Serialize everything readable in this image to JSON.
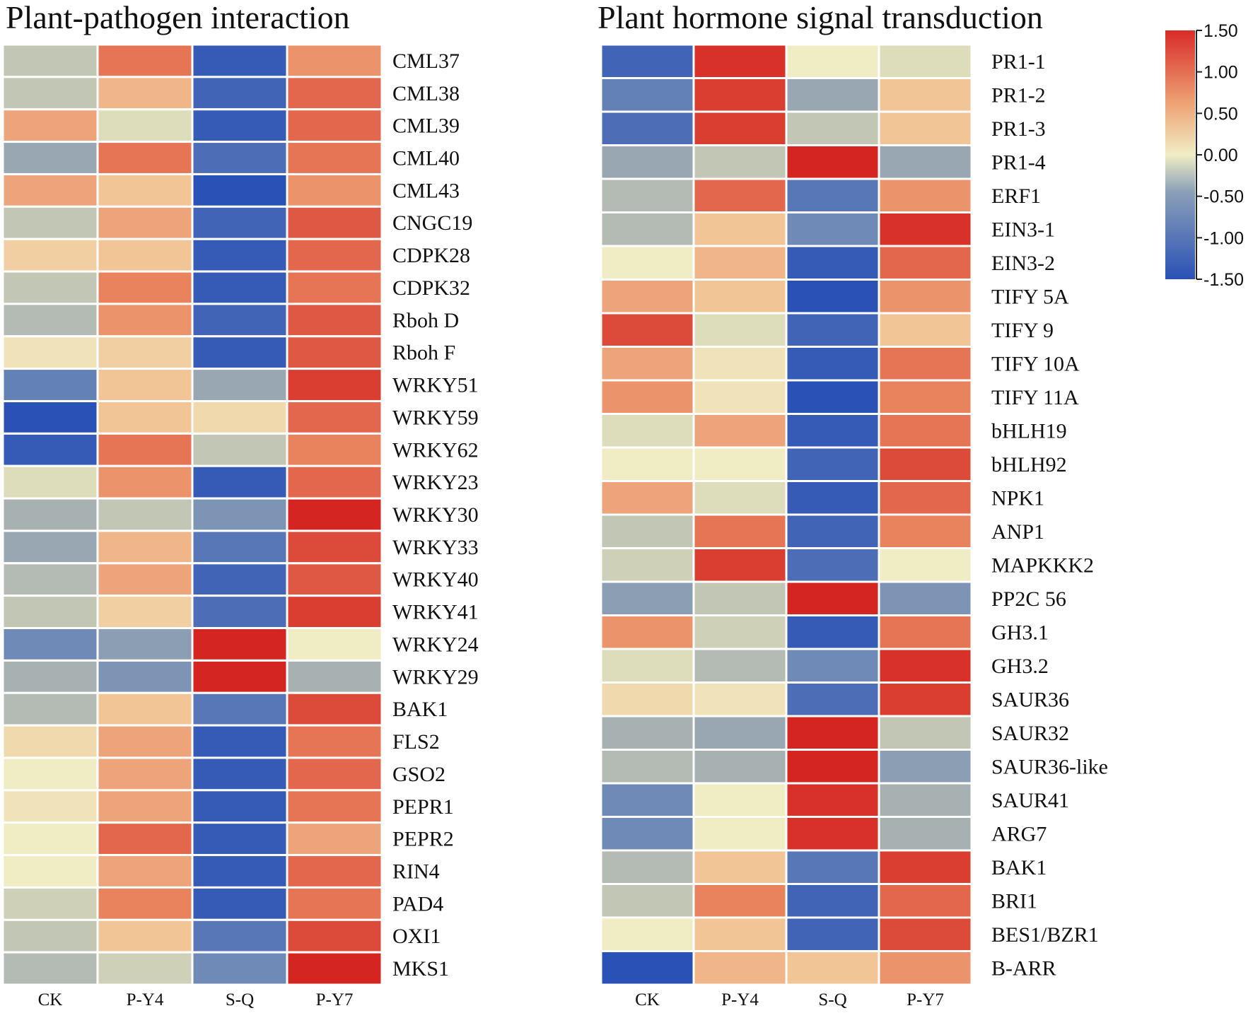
{
  "chart_data": [
    {
      "type": "heatmap",
      "title": "Plant-pathogen interaction",
      "columns": [
        "CK",
        "P-Y4",
        "S-Q",
        "P-Y7"
      ],
      "rows": [
        "CML37",
        "CML38",
        "CML39",
        "CML40",
        "CML43",
        "CNGC19",
        "CDPK28",
        "CDPK32",
        "Rboh D",
        "Rboh F",
        "WRKY51",
        "WRKY59",
        "WRKY62",
        "WRKY23",
        "WRKY30",
        "WRKY33",
        "WRKY40",
        "WRKY41",
        "WRKY24",
        "WRKY29",
        "BAK1",
        "FLS2",
        "GSO2",
        "PEPR1",
        "PEPR2",
        "RIN4",
        "PAD4",
        "OXI1",
        "MKS1"
      ],
      "values": [
        [
          -0.3,
          0.9,
          -1.4,
          0.7
        ],
        [
          -0.3,
          0.5,
          -1.3,
          1.0
        ],
        [
          0.6,
          -0.1,
          -1.4,
          1.0
        ],
        [
          -0.6,
          0.9,
          -1.2,
          0.9
        ],
        [
          0.6,
          0.4,
          -1.5,
          0.7
        ],
        [
          -0.3,
          0.6,
          -1.3,
          1.1
        ],
        [
          0.3,
          0.4,
          -1.4,
          1.0
        ],
        [
          -0.3,
          0.8,
          -1.4,
          0.9
        ],
        [
          -0.4,
          0.7,
          -1.3,
          1.1
        ],
        [
          0.1,
          0.3,
          -1.4,
          1.1
        ],
        [
          -1.0,
          0.4,
          -0.6,
          1.3
        ],
        [
          -1.5,
          0.4,
          0.2,
          1.0
        ],
        [
          -1.4,
          0.9,
          -0.3,
          0.8
        ],
        [
          -0.1,
          0.7,
          -1.4,
          1.0
        ],
        [
          -0.5,
          -0.3,
          -0.8,
          1.5
        ],
        [
          -0.6,
          0.5,
          -1.1,
          1.2
        ],
        [
          -0.4,
          0.6,
          -1.3,
          1.1
        ],
        [
          -0.3,
          0.3,
          -1.2,
          1.3
        ],
        [
          -0.9,
          -0.7,
          1.5,
          0.0
        ],
        [
          -0.5,
          -0.8,
          1.5,
          -0.5
        ],
        [
          -0.4,
          0.4,
          -1.1,
          1.2
        ],
        [
          0.2,
          0.6,
          -1.4,
          0.9
        ],
        [
          0.0,
          0.6,
          -1.4,
          1.0
        ],
        [
          0.1,
          0.6,
          -1.4,
          0.9
        ],
        [
          0.0,
          1.0,
          -1.4,
          0.6
        ],
        [
          0.0,
          0.6,
          -1.4,
          1.0
        ],
        [
          -0.2,
          0.8,
          -1.4,
          0.9
        ],
        [
          -0.3,
          0.4,
          -1.1,
          1.2
        ],
        [
          -0.4,
          -0.2,
          -0.9,
          1.5
        ]
      ]
    },
    {
      "type": "heatmap",
      "title": "Plant hormone signal transduction",
      "columns": [
        "CK",
        "P-Y4",
        "S-Q",
        "P-Y7"
      ],
      "rows": [
        "PR1-1",
        "PR1-2",
        "PR1-3",
        "PR1-4",
        "ERF1",
        "EIN3-1",
        "EIN3-2",
        "TIFY 5A",
        "TIFY 9",
        "TIFY 10A",
        "TIFY 11A",
        "bHLH19",
        "bHLH92",
        "NPK1",
        "ANP1",
        "MAPKKK2",
        "PP2C 56",
        "GH3.1",
        "GH3.2",
        "SAUR36",
        "SAUR32",
        "SAUR36-like",
        "SAUR41",
        "ARG7",
        "BAK1",
        "BRI1",
        "BES1/BZR1",
        "B-ARR"
      ],
      "values": [
        [
          -1.3,
          1.4,
          0.0,
          -0.1
        ],
        [
          -1.0,
          1.3,
          -0.6,
          0.4
        ],
        [
          -1.2,
          1.3,
          -0.3,
          0.4
        ],
        [
          -0.6,
          -0.3,
          1.5,
          -0.6
        ],
        [
          -0.4,
          1.0,
          -1.1,
          0.7
        ],
        [
          -0.4,
          0.4,
          -0.9,
          1.4
        ],
        [
          0.0,
          0.5,
          -1.4,
          1.0
        ],
        [
          0.6,
          0.4,
          -1.5,
          0.7
        ],
        [
          1.2,
          -0.1,
          -1.3,
          0.4
        ],
        [
          0.6,
          0.1,
          -1.4,
          0.9
        ],
        [
          0.7,
          0.1,
          -1.5,
          0.8
        ],
        [
          -0.1,
          0.6,
          -1.4,
          0.9
        ],
        [
          0.0,
          0.0,
          -1.3,
          1.2
        ],
        [
          0.6,
          -0.1,
          -1.4,
          1.0
        ],
        [
          -0.3,
          0.9,
          -1.3,
          0.8
        ],
        [
          -0.2,
          1.3,
          -1.2,
          0.0
        ],
        [
          -0.7,
          -0.3,
          1.5,
          -0.8
        ],
        [
          0.7,
          -0.2,
          -1.4,
          0.9
        ],
        [
          -0.1,
          -0.4,
          -0.9,
          1.4
        ],
        [
          0.2,
          0.1,
          -1.2,
          1.3
        ],
        [
          -0.5,
          -0.6,
          1.5,
          -0.3
        ],
        [
          -0.4,
          -0.5,
          1.5,
          -0.7
        ],
        [
          -0.9,
          0.0,
          1.4,
          -0.5
        ],
        [
          -0.9,
          0.0,
          1.4,
          -0.5
        ],
        [
          -0.4,
          0.4,
          -1.1,
          1.3
        ],
        [
          -0.3,
          0.8,
          -1.3,
          1.0
        ],
        [
          0.0,
          0.4,
          -1.3,
          1.2
        ],
        [
          -1.5,
          0.5,
          0.4,
          0.7
        ]
      ]
    }
  ],
  "colorbar": {
    "ticks": [
      "1.50",
      "1.00",
      "0.50",
      "0.00",
      "-0.50",
      "-1.00",
      "-1.50"
    ],
    "range": [
      -1.5,
      1.5
    ],
    "colors": [
      "#2a51b6",
      "#c9cbb4",
      "#f0edc4",
      "#d82b27"
    ]
  }
}
